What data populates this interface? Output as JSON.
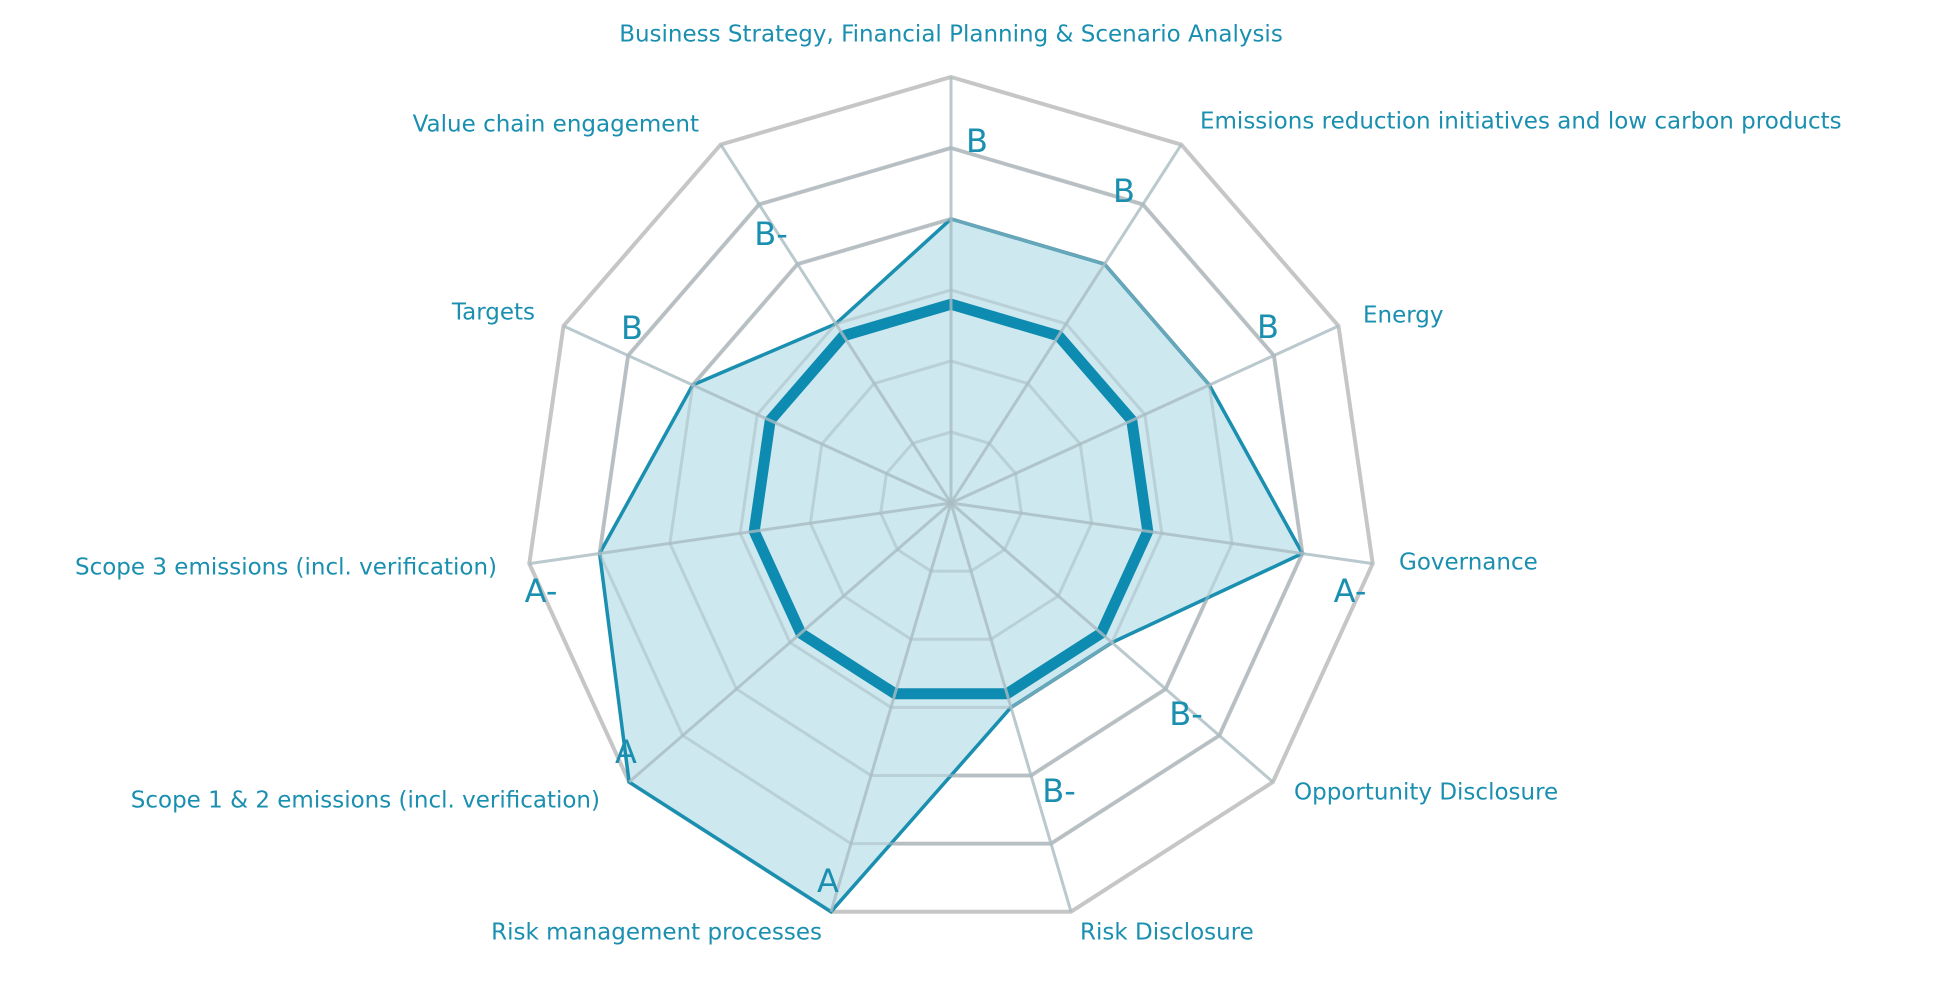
{
  "chart_data": {
    "type": "radar",
    "title": "",
    "rings": 6,
    "rmax": 6,
    "colors": {
      "accent": "#1a8fb0",
      "fill": "#cde8ef",
      "grid": "#c6c6c6",
      "grid_inner": "#a9bcc2",
      "reference": "#0e8bb0"
    },
    "axes": [
      "Business Strategy, Financial Planning & Scenario Analysis",
      "Emissions reduction initiatives and low carbon products",
      "Energy",
      "Governance",
      "Opportunity Disclosure",
      "Risk Disclosure",
      "Risk management processes",
      "Scope 1 & 2 emissions (incl. verification)",
      "Scope 3 emissions (incl. verification)",
      "Targets",
      "Value chain engagement"
    ],
    "series": [
      {
        "grades": [
          "B",
          "B",
          "B",
          "A-",
          "B-",
          "B-",
          "A",
          "A",
          "A-",
          "B",
          "B-"
        ],
        "values": [
          4,
          4,
          4,
          5,
          3,
          3,
          6,
          6,
          5,
          4,
          3
        ]
      }
    ],
    "reference_level": 2.8
  }
}
